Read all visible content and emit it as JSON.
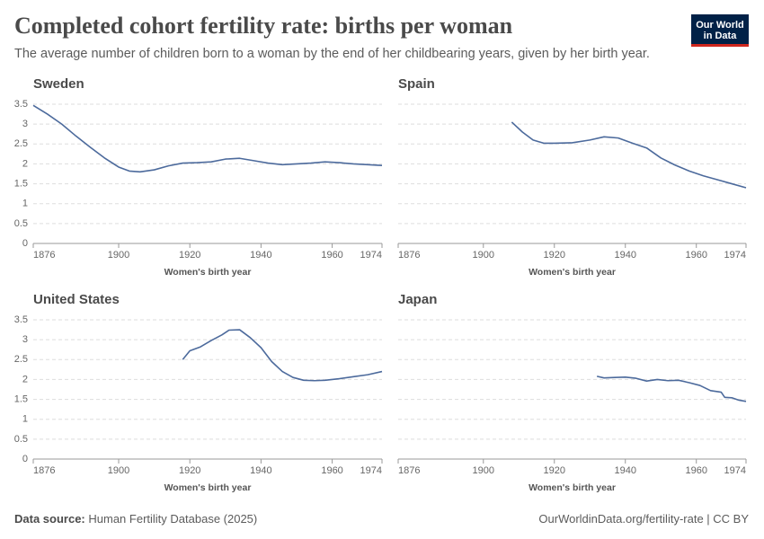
{
  "header": {
    "title": "Completed cohort fertility rate: births per woman",
    "subtitle": "The average number of children born to a woman by the end of her childbearing years, given by her birth year."
  },
  "logo": {
    "line1": "Our World",
    "line2": "in Data"
  },
  "footer": {
    "source_label": "Data source:",
    "source": "Human Fertility Database (2025)",
    "url": "OurWorldinData.org/fertility-rate | CC BY"
  },
  "chart_data": [
    {
      "type": "line",
      "title": "Sweden",
      "xlabel": "Women's birth year",
      "color": "#4c6a9c",
      "x": [
        1876,
        1880,
        1884,
        1888,
        1892,
        1896,
        1900,
        1903,
        1906,
        1910,
        1914,
        1918,
        1922,
        1926,
        1930,
        1934,
        1938,
        1942,
        1946,
        1950,
        1954,
        1958,
        1962,
        1966,
        1970,
        1974
      ],
      "values": [
        3.47,
        3.25,
        3.0,
        2.7,
        2.42,
        2.15,
        1.92,
        1.82,
        1.8,
        1.85,
        1.95,
        2.02,
        2.03,
        2.05,
        2.12,
        2.14,
        2.08,
        2.02,
        1.98,
        2.0,
        2.02,
        2.05,
        2.03,
        2.0,
        1.98,
        1.96
      ],
      "xlim": [
        1876,
        1974
      ],
      "xticks": [
        1876,
        1900,
        1920,
        1940,
        1960,
        1974
      ],
      "ylim": [
        0,
        3.5
      ],
      "yticks": [
        0,
        0.5,
        1,
        1.5,
        2,
        2.5,
        3,
        3.5
      ],
      "ytick_labels": true,
      "grid": true
    },
    {
      "type": "line",
      "title": "Spain",
      "xlabel": "Women's birth year",
      "color": "#4c6a9c",
      "x": [
        1908,
        1911,
        1914,
        1917,
        1920,
        1925,
        1930,
        1934,
        1938,
        1942,
        1946,
        1950,
        1954,
        1958,
        1962,
        1966,
        1970,
        1974
      ],
      "values": [
        3.05,
        2.8,
        2.6,
        2.52,
        2.52,
        2.53,
        2.6,
        2.68,
        2.65,
        2.52,
        2.4,
        2.15,
        1.97,
        1.82,
        1.7,
        1.6,
        1.5,
        1.4
      ],
      "xlim": [
        1876,
        1974
      ],
      "xticks": [
        1876,
        1900,
        1920,
        1940,
        1960,
        1974
      ],
      "ylim": [
        0,
        3.5
      ],
      "yticks": [
        0,
        0.5,
        1,
        1.5,
        2,
        2.5,
        3,
        3.5
      ],
      "ytick_labels": false,
      "grid": true
    },
    {
      "type": "line",
      "title": "United States",
      "xlabel": "Women's birth year",
      "color": "#4c6a9c",
      "x": [
        1918,
        1920,
        1923,
        1926,
        1929,
        1931,
        1934,
        1937,
        1940,
        1943,
        1946,
        1949,
        1952,
        1955,
        1958,
        1962,
        1966,
        1970,
        1974
      ],
      "values": [
        2.5,
        2.72,
        2.82,
        2.98,
        3.12,
        3.24,
        3.25,
        3.05,
        2.8,
        2.45,
        2.2,
        2.05,
        1.98,
        1.97,
        1.98,
        2.02,
        2.07,
        2.12,
        2.2
      ],
      "xlim": [
        1876,
        1974
      ],
      "xticks": [
        1876,
        1900,
        1920,
        1940,
        1960,
        1974
      ],
      "ylim": [
        0,
        3.5
      ],
      "yticks": [
        0,
        0.5,
        1,
        1.5,
        2,
        2.5,
        3,
        3.5
      ],
      "ytick_labels": true,
      "grid": true
    },
    {
      "type": "line",
      "title": "Japan",
      "xlabel": "Women's birth year",
      "color": "#4c6a9c",
      "x": [
        1932,
        1934,
        1937,
        1940,
        1943,
        1946,
        1949,
        1952,
        1955,
        1958,
        1961,
        1964,
        1967,
        1968,
        1970,
        1972,
        1974
      ],
      "values": [
        2.08,
        2.04,
        2.05,
        2.06,
        2.03,
        1.96,
        2.0,
        1.97,
        1.98,
        1.92,
        1.85,
        1.72,
        1.68,
        1.55,
        1.54,
        1.48,
        1.45
      ],
      "xlim": [
        1876,
        1974
      ],
      "xticks": [
        1876,
        1900,
        1920,
        1940,
        1960,
        1974
      ],
      "ylim": [
        0,
        3.5
      ],
      "yticks": [
        0,
        0.5,
        1,
        1.5,
        2,
        2.5,
        3,
        3.5
      ],
      "ytick_labels": false,
      "grid": true
    }
  ]
}
